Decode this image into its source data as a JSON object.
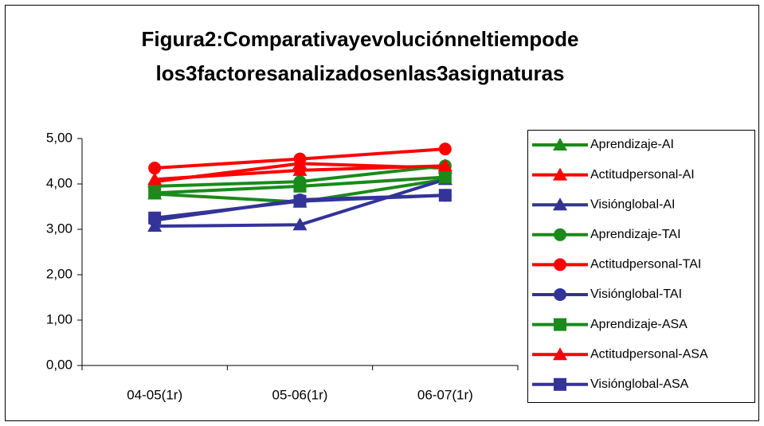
{
  "chart_data": {
    "type": "line",
    "title": [
      "Figura2:Comparativayevoluciónneltiempode",
      "los3factoresanalizadosenlas3asignaturas"
    ],
    "categories": [
      "04-05(1r)",
      "05-06(1r)",
      "06-07(1r)"
    ],
    "ylim": [
      0,
      5
    ],
    "yticks": [
      {
        "value": 0,
        "label": "0,00"
      },
      {
        "value": 1,
        "label": "1,00"
      },
      {
        "value": 2,
        "label": "2,00"
      },
      {
        "value": 3,
        "label": "3,00"
      },
      {
        "value": 4,
        "label": "4,00"
      },
      {
        "value": 5,
        "label": "5,00"
      }
    ],
    "grid": false,
    "legend": "right",
    "series": [
      {
        "name": "Aprendizaje-AI",
        "color": "#1a8a1a",
        "marker": "triangle",
        "values": [
          3.78,
          3.6,
          4.1
        ]
      },
      {
        "name": "Actitudpersonal-AI",
        "color": "#ff0000",
        "marker": "triangle",
        "values": [
          4.05,
          4.45,
          4.35
        ]
      },
      {
        "name": "Visiónglobal-AI",
        "color": "#333399",
        "marker": "triangle",
        "values": [
          3.07,
          3.1,
          4.1
        ]
      },
      {
        "name": "Aprendizaje-TAI",
        "color": "#1a8a1a",
        "marker": "circle",
        "values": [
          3.95,
          4.05,
          4.4
        ]
      },
      {
        "name": "Actitudpersonal-TAI",
        "color": "#ff0000",
        "marker": "circle",
        "values": [
          4.35,
          4.55,
          4.77
        ]
      },
      {
        "name": "Visiónglobal-TAI",
        "color": "#333399",
        "marker": "circle",
        "values": [
          3.2,
          3.65,
          3.75
        ]
      },
      {
        "name": "Aprendizaje-ASA",
        "color": "#1a8a1a",
        "marker": "square",
        "values": [
          3.8,
          3.95,
          4.15
        ]
      },
      {
        "name": "Actitudpersonal-ASA",
        "color": "#ff0000",
        "marker": "triangle",
        "values": [
          4.1,
          4.3,
          4.4
        ]
      },
      {
        "name": "Visiónglobal-ASA",
        "color": "#333399",
        "marker": "square",
        "values": [
          3.25,
          3.62,
          3.75
        ]
      }
    ]
  }
}
